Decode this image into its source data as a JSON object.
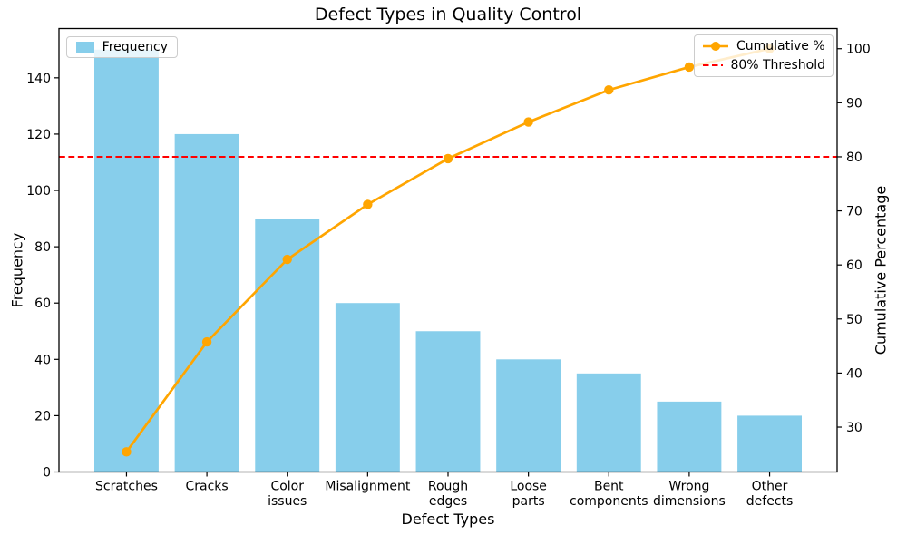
{
  "figure": {
    "background": "#ffffff",
    "frame_color": "#000000"
  },
  "chart_data": {
    "type": "pareto (bar + cumulative line)",
    "title": "Defect Types in Quality Control",
    "xlabel": "Defect Types",
    "ylabel_left": "Frequency",
    "ylabel_right": "Cumulative Percentage",
    "categories": [
      "Scratches",
      "Cracks",
      "Color\nissues",
      "Misalignment",
      "Rough\nedges",
      "Loose\nparts",
      "Bent\ncomponents",
      "Wrong\ndimensions",
      "Other\ndefects"
    ],
    "bar_series": {
      "name": "Frequency",
      "values": [
        150,
        120,
        90,
        60,
        50,
        40,
        35,
        25,
        20
      ],
      "color": "#87CEEB"
    },
    "line_series": {
      "name": "Cumulative %",
      "values": [
        25.42,
        45.76,
        61.02,
        71.19,
        79.66,
        86.44,
        92.37,
        96.61,
        100.0
      ],
      "color": "#FFA500",
      "marker": "circle"
    },
    "threshold": {
      "label": "80% Threshold",
      "value": 80,
      "color": "#FF0000",
      "linestyle": "dashed"
    },
    "axes": {
      "yticks_left": [
        0,
        20,
        40,
        60,
        80,
        100,
        120,
        140
      ],
      "yticks_right": [
        30,
        40,
        50,
        60,
        70,
        80,
        90,
        100
      ],
      "ylim_left": [
        0,
        157.5
      ],
      "ylim_right": [
        21.7,
        103.73
      ],
      "xlim": [
        -0.84,
        8.84
      ],
      "grid": false
    },
    "legend_left": {
      "position": "upper left",
      "entries": [
        "Frequency"
      ]
    },
    "legend_right": {
      "position": "upper right",
      "entries": [
        "Cumulative %",
        "80% Threshold"
      ]
    }
  }
}
